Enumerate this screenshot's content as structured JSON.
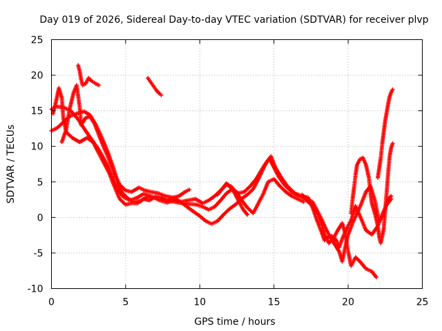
{
  "chart_data": {
    "type": "scatter",
    "title": "Day 019 of 2026, Sidereal Day-to-day VTEC variation (SDTVAR) for receiver plvp",
    "xlabel": "GPS time / hours",
    "ylabel": "SDTVAR / TECUs",
    "xlim": [
      0,
      25
    ],
    "ylim": [
      -10,
      25
    ],
    "x_ticks": [
      "0",
      "5",
      "10",
      "15",
      "20",
      "25"
    ],
    "y_ticks": [
      "-10",
      "-5",
      "0",
      "5",
      "10",
      "15",
      "20",
      "25"
    ],
    "grid": true,
    "marker": "plus",
    "color": "#ff0000",
    "series": [
      {
        "name": "track-1",
        "points": [
          [
            0.0,
            15.2
          ],
          [
            0.3,
            15.6
          ],
          [
            0.8,
            15.5
          ],
          [
            1.3,
            15.0
          ],
          [
            1.8,
            13.8
          ],
          [
            2.3,
            12.2
          ],
          [
            2.7,
            11.0
          ],
          [
            3.2,
            9.5
          ],
          [
            3.6,
            8.0
          ],
          [
            3.9,
            6.8
          ],
          [
            4.2,
            5.2
          ],
          [
            4.5,
            3.8
          ],
          [
            4.9,
            2.8
          ],
          [
            5.3,
            2.4
          ],
          [
            5.8,
            2.8
          ],
          [
            6.2,
            3.3
          ],
          [
            6.7,
            3.0
          ],
          [
            7.2,
            2.6
          ],
          [
            7.8,
            2.4
          ],
          [
            8.3,
            2.2
          ],
          [
            8.8,
            2.0
          ],
          [
            9.3,
            1.9
          ],
          [
            9.8,
            1.8
          ],
          [
            10.2,
            1.5
          ],
          [
            10.6,
            1.1
          ],
          [
            11.0,
            1.5
          ],
          [
            11.4,
            2.4
          ],
          [
            11.8,
            3.4
          ],
          [
            12.2,
            4.0
          ],
          [
            12.6,
            3.4
          ],
          [
            13.0,
            3.6
          ],
          [
            13.4,
            4.4
          ],
          [
            13.8,
            5.4
          ],
          [
            14.2,
            6.8
          ],
          [
            14.5,
            7.8
          ],
          [
            14.7,
            8.3
          ],
          [
            15.0,
            7.0
          ],
          [
            15.3,
            5.8
          ],
          [
            15.7,
            4.6
          ],
          [
            16.2,
            3.6
          ],
          [
            16.7,
            3.0
          ],
          [
            17.1,
            2.6
          ],
          [
            17.5,
            1.8
          ],
          [
            17.9,
            0.8
          ],
          [
            18.2,
            -0.8
          ],
          [
            18.4,
            -2.4
          ],
          [
            18.7,
            -3.6
          ],
          [
            19.0,
            -3.0
          ],
          [
            19.3,
            -1.8
          ],
          [
            19.6,
            -0.8
          ],
          [
            19.8,
            -2.2
          ],
          [
            20.0,
            -4.8
          ],
          [
            20.2,
            -6.8
          ],
          [
            20.5,
            -5.6
          ],
          [
            20.8,
            -6.2
          ],
          [
            21.2,
            -7.2
          ],
          [
            21.6,
            -7.6
          ],
          [
            21.9,
            -8.4
          ]
        ]
      },
      {
        "name": "track-2",
        "points": [
          [
            0.0,
            12.2
          ],
          [
            0.4,
            12.6
          ],
          [
            0.8,
            13.4
          ],
          [
            1.2,
            14.2
          ],
          [
            1.7,
            14.6
          ],
          [
            2.2,
            14.9
          ],
          [
            2.6,
            14.4
          ],
          [
            3.0,
            13.0
          ],
          [
            3.4,
            11.2
          ],
          [
            3.8,
            9.2
          ],
          [
            4.2,
            6.8
          ],
          [
            4.5,
            4.6
          ],
          [
            4.8,
            3.4
          ],
          [
            5.2,
            2.6
          ],
          [
            5.6,
            2.2
          ],
          [
            6.0,
            2.3
          ],
          [
            6.4,
            2.8
          ],
          [
            6.8,
            2.9
          ],
          [
            7.3,
            2.4
          ],
          [
            7.8,
            2.1
          ],
          [
            8.3,
            2.4
          ],
          [
            8.7,
            2.2
          ],
          [
            9.2,
            1.4
          ],
          [
            9.6,
            0.8
          ],
          [
            10.0,
            0.2
          ],
          [
            10.4,
            -0.5
          ],
          [
            10.8,
            -0.9
          ],
          [
            11.2,
            -0.5
          ],
          [
            11.6,
            0.4
          ],
          [
            12.0,
            1.2
          ],
          [
            12.4,
            1.8
          ],
          [
            12.8,
            2.6
          ],
          [
            13.2,
            3.2
          ],
          [
            13.6,
            4.0
          ],
          [
            14.0,
            5.6
          ],
          [
            14.4,
            7.4
          ],
          [
            14.8,
            8.6
          ],
          [
            15.1,
            7.0
          ],
          [
            15.5,
            5.6
          ],
          [
            15.9,
            4.4
          ],
          [
            16.4,
            3.4
          ],
          [
            16.9,
            3.0
          ],
          [
            17.3,
            2.8
          ],
          [
            17.6,
            1.4
          ],
          [
            17.9,
            -0.4
          ],
          [
            18.2,
            -2.0
          ],
          [
            18.4,
            -3.2
          ],
          [
            18.6,
            -2.8
          ],
          [
            18.9,
            -2.6
          ],
          [
            19.2,
            -3.2
          ],
          [
            19.4,
            -4.2
          ],
          [
            19.6,
            -3.0
          ],
          [
            19.9,
            -1.6
          ],
          [
            20.2,
            -0.4
          ],
          [
            20.5,
            1.6
          ],
          [
            20.8,
            0.2
          ],
          [
            21.2,
            -1.8
          ],
          [
            21.6,
            -2.4
          ],
          [
            22.0,
            -1.2
          ],
          [
            22.3,
            0.4
          ],
          [
            22.6,
            1.8
          ],
          [
            22.9,
            2.6
          ]
        ]
      },
      {
        "name": "track-3",
        "points": [
          [
            0.1,
            14.6
          ],
          [
            0.3,
            16.2
          ],
          [
            0.5,
            18.2
          ],
          [
            0.7,
            16.8
          ],
          [
            0.8,
            14.0
          ],
          [
            1.0,
            12.0
          ],
          [
            1.4,
            11.2
          ],
          [
            1.9,
            10.6
          ],
          [
            2.4,
            11.2
          ],
          [
            2.8,
            10.6
          ],
          [
            3.2,
            9.0
          ],
          [
            3.6,
            7.4
          ],
          [
            3.9,
            6.2
          ],
          [
            4.2,
            4.6
          ],
          [
            4.6,
            2.6
          ],
          [
            5.0,
            1.8
          ],
          [
            5.4,
            2.0
          ],
          [
            5.8,
            2.0
          ],
          [
            6.2,
            2.6
          ],
          [
            6.6,
            2.4
          ],
          [
            7.0,
            2.9
          ],
          [
            7.4,
            2.8
          ],
          [
            7.8,
            2.3
          ],
          [
            8.2,
            2.8
          ],
          [
            8.6,
            3.0
          ],
          [
            9.0,
            3.6
          ],
          [
            9.3,
            3.9
          ]
        ]
      },
      {
        "name": "track-4",
        "points": [
          [
            0.7,
            10.6
          ],
          [
            1.0,
            12.4
          ],
          [
            1.2,
            15.0
          ],
          [
            1.5,
            17.6
          ],
          [
            1.7,
            18.6
          ],
          [
            1.9,
            15.6
          ],
          [
            2.0,
            13.0
          ],
          [
            2.3,
            14.0
          ],
          [
            2.6,
            14.2
          ],
          [
            2.9,
            13.2
          ],
          [
            3.2,
            11.6
          ],
          [
            3.5,
            10.0
          ],
          [
            3.8,
            8.6
          ],
          [
            4.2,
            6.4
          ],
          [
            4.6,
            4.6
          ],
          [
            5.0,
            3.8
          ],
          [
            5.4,
            3.6
          ],
          [
            5.9,
            4.2
          ],
          [
            6.3,
            3.8
          ],
          [
            6.7,
            3.6
          ],
          [
            7.2,
            3.4
          ],
          [
            7.7,
            3.0
          ],
          [
            8.2,
            2.8
          ],
          [
            8.7,
            2.2
          ],
          [
            9.2,
            2.4
          ],
          [
            9.7,
            2.6
          ],
          [
            10.2,
            2.0
          ],
          [
            10.6,
            2.4
          ],
          [
            11.0,
            3.0
          ],
          [
            11.4,
            3.8
          ],
          [
            11.8,
            4.6
          ],
          [
            12.1,
            4.4
          ],
          [
            12.5,
            3.4
          ],
          [
            12.9,
            2.2
          ],
          [
            13.2,
            1.4
          ],
          [
            13.6,
            0.6
          ],
          [
            13.9,
            1.8
          ],
          [
            14.3,
            3.4
          ],
          [
            14.6,
            5.0
          ],
          [
            15.0,
            5.4
          ],
          [
            15.4,
            4.4
          ],
          [
            15.8,
            3.6
          ],
          [
            16.2,
            3.0
          ],
          [
            16.6,
            2.6
          ],
          [
            17.0,
            2.2
          ]
        ]
      },
      {
        "name": "track-5",
        "points": [
          [
            1.8,
            21.4
          ],
          [
            1.9,
            20.6
          ],
          [
            2.0,
            19.4
          ],
          [
            2.1,
            18.6
          ],
          [
            2.3,
            18.8
          ],
          [
            2.5,
            19.6
          ],
          [
            2.7,
            19.2
          ],
          [
            3.0,
            18.8
          ],
          [
            3.2,
            18.6
          ]
        ]
      },
      {
        "name": "track-6",
        "points": [
          [
            6.5,
            19.6
          ],
          [
            6.7,
            19.0
          ],
          [
            6.9,
            18.4
          ],
          [
            7.1,
            17.8
          ],
          [
            7.3,
            17.4
          ],
          [
            7.4,
            17.2
          ]
        ]
      },
      {
        "name": "track-7",
        "points": [
          [
            16.9,
            3.2
          ],
          [
            17.2,
            2.6
          ],
          [
            17.6,
            2.2
          ],
          [
            17.9,
            1.0
          ],
          [
            18.2,
            -0.2
          ],
          [
            18.5,
            -1.6
          ],
          [
            18.8,
            -2.8
          ],
          [
            19.1,
            -3.8
          ],
          [
            19.4,
            -4.8
          ],
          [
            19.6,
            -6.2
          ],
          [
            19.8,
            -4.2
          ],
          [
            20.0,
            -2.4
          ],
          [
            20.3,
            -0.8
          ],
          [
            20.6,
            0.6
          ],
          [
            20.9,
            2.0
          ],
          [
            21.2,
            3.6
          ],
          [
            21.5,
            4.4
          ],
          [
            21.8,
            2.4
          ],
          [
            22.1,
            -0.6
          ],
          [
            22.4,
            0.6
          ],
          [
            22.7,
            2.6
          ],
          [
            22.9,
            3.0
          ]
        ]
      },
      {
        "name": "track-8",
        "points": [
          [
            20.2,
            0.6
          ],
          [
            20.3,
            2.6
          ],
          [
            20.4,
            4.2
          ],
          [
            20.5,
            6.0
          ],
          [
            20.6,
            7.4
          ],
          [
            20.8,
            8.2
          ],
          [
            21.0,
            8.4
          ],
          [
            21.2,
            7.4
          ],
          [
            21.4,
            5.6
          ],
          [
            21.5,
            3.6
          ],
          [
            21.6,
            2.0
          ],
          [
            21.8,
            0.6
          ],
          [
            22.0,
            -1.2
          ],
          [
            22.1,
            -2.8
          ],
          [
            22.2,
            -3.6
          ],
          [
            22.4,
            -1.6
          ],
          [
            22.5,
            1.2
          ],
          [
            22.6,
            3.6
          ],
          [
            22.7,
            6.4
          ],
          [
            22.8,
            8.6
          ],
          [
            22.9,
            9.8
          ],
          [
            23.0,
            10.4
          ]
        ]
      },
      {
        "name": "track-9",
        "points": [
          [
            22.0,
            5.6
          ],
          [
            22.1,
            7.0
          ],
          [
            22.2,
            8.4
          ],
          [
            22.3,
            10.4
          ],
          [
            22.4,
            12.0
          ],
          [
            22.5,
            13.6
          ],
          [
            22.6,
            14.8
          ],
          [
            22.7,
            16.0
          ],
          [
            22.8,
            17.0
          ],
          [
            22.9,
            17.6
          ],
          [
            23.0,
            18.0
          ]
        ]
      },
      {
        "name": "track-10",
        "points": [
          [
            11.2,
            3.2
          ],
          [
            11.5,
            4.0
          ],
          [
            11.8,
            4.8
          ],
          [
            12.0,
            4.4
          ],
          [
            12.3,
            3.6
          ],
          [
            12.6,
            2.4
          ],
          [
            12.9,
            1.2
          ],
          [
            13.2,
            0.4
          ]
        ]
      }
    ]
  }
}
